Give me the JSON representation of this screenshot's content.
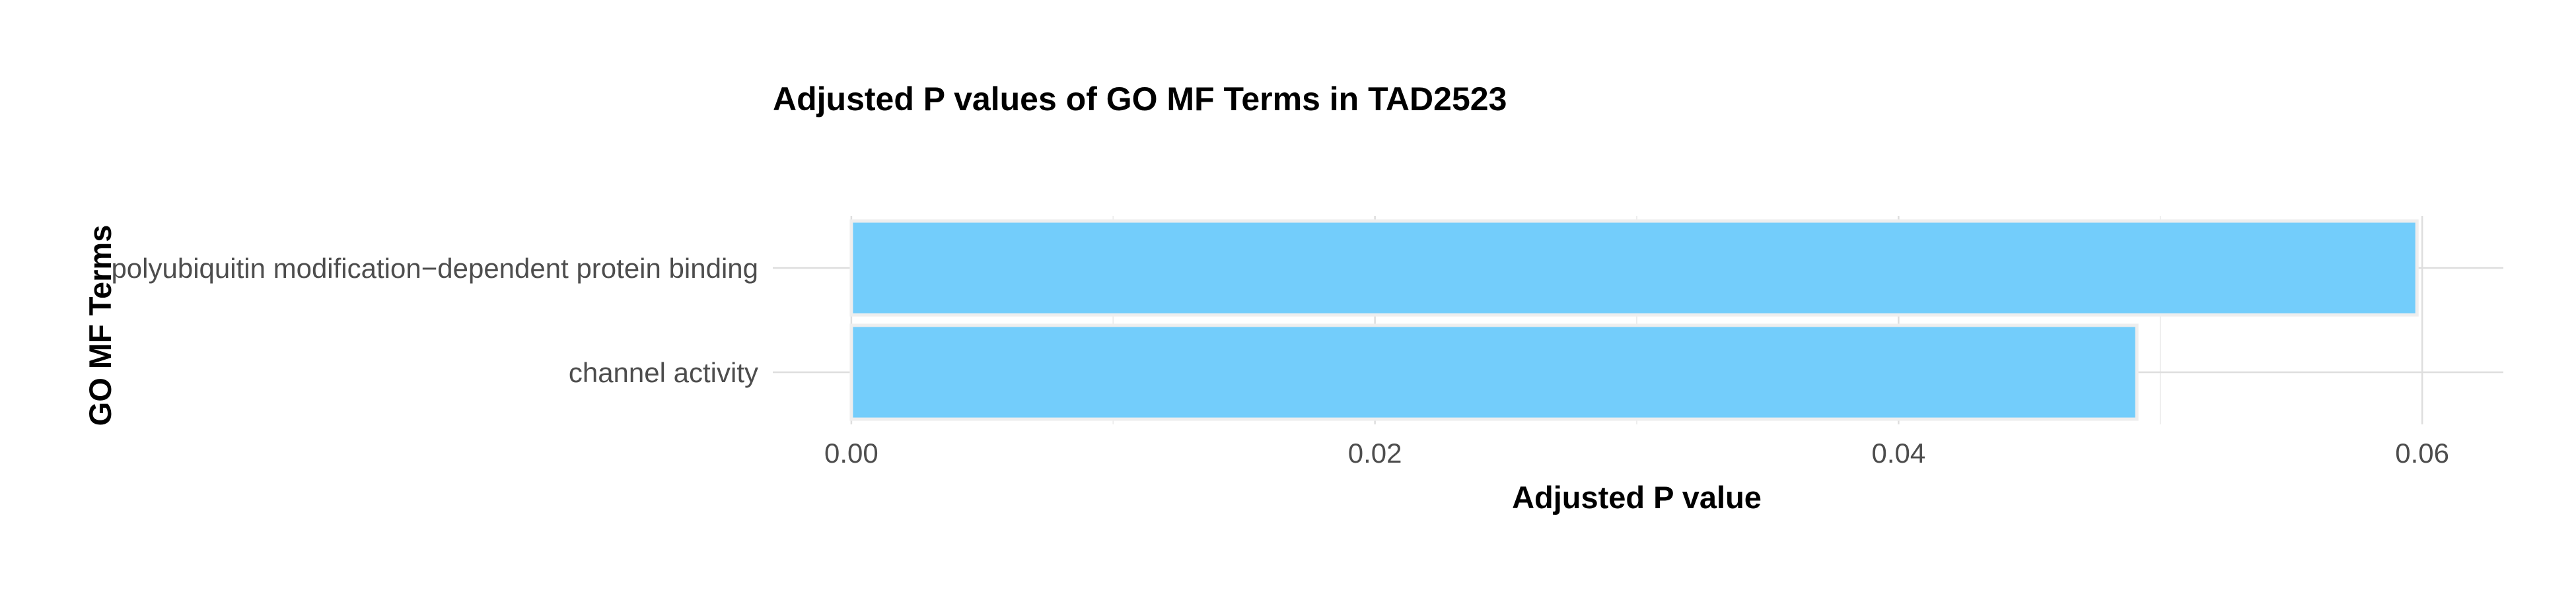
{
  "chart_data": {
    "type": "bar",
    "orientation": "horizontal",
    "title": "Adjusted P values of GO MF Terms in TAD2523",
    "xlabel": "Adjusted P value",
    "ylabel": "GO MF Terms",
    "categories": [
      "polyubiquitin modification−dependent protein binding",
      "channel activity"
    ],
    "values": [
      0.0598,
      0.0491
    ],
    "xlim": [
      -0.003,
      0.0631
    ],
    "xticks": [
      0.0,
      0.02,
      0.04,
      0.06
    ],
    "xtick_labels": [
      "0.00",
      "0.02",
      "0.04",
      "0.06"
    ],
    "bar_color": "#73CDFB",
    "bar_outline_color": "#EEEEEE",
    "grid": true,
    "legend": "none"
  }
}
